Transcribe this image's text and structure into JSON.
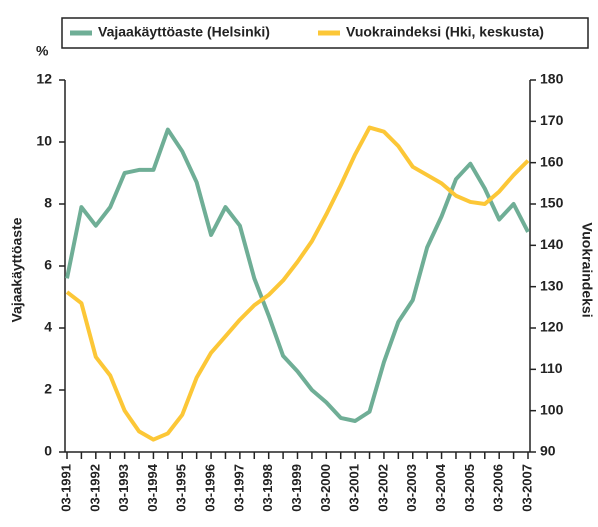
{
  "chart_data": {
    "type": "line",
    "y_label_unit": "%",
    "ylabel": "Vajaakäyttöaste",
    "y2label": "Vuokraindeksi",
    "categories": [
      "03-1991",
      null,
      "03-1992",
      null,
      "03-1993",
      null,
      "03-1994",
      null,
      "03-1995",
      null,
      "03-1996",
      null,
      "03-1997",
      null,
      "03-1998",
      null,
      "03-1999",
      null,
      "03-2000",
      null,
      "03-2001",
      null,
      "03-2002",
      null,
      "03-2003",
      null,
      "03-2004",
      null,
      "03-2005",
      null,
      "03-2006",
      null,
      "03-2007"
    ],
    "series": [
      {
        "name": "Vajaakäyttöaste (Helsinki)",
        "color": "#6fae96",
        "axis": "y",
        "values": [
          5.6,
          7.9,
          7.3,
          7.9,
          9.0,
          9.1,
          9.1,
          10.4,
          9.7,
          8.7,
          7.0,
          7.9,
          7.3,
          5.6,
          4.4,
          3.1,
          2.6,
          2.0,
          1.6,
          1.1,
          1.0,
          1.3,
          2.9,
          4.2,
          4.9,
          6.6,
          7.6,
          8.8,
          9.3,
          8.5,
          7.5,
          8.0,
          7.1
        ]
      },
      {
        "name": "Vuokraindeksi (Hki, keskusta)",
        "color": "#fcc737",
        "axis": "y2",
        "values": [
          128.7,
          126,
          113,
          108.5,
          100,
          95,
          93,
          94.5,
          99,
          108,
          114,
          118,
          122,
          125.5,
          128,
          131.5,
          136,
          141,
          147.5,
          154.5,
          162,
          168.5,
          167.5,
          164,
          159,
          157,
          155,
          152,
          150.5,
          150,
          153,
          157,
          160.5
        ]
      }
    ],
    "ylim": [
      0,
      12
    ],
    "yticks": [
      0,
      2,
      4,
      6,
      8,
      10,
      12
    ],
    "y2lim": [
      90,
      180
    ],
    "y2ticks": [
      90,
      100,
      110,
      120,
      130,
      140,
      150,
      160,
      170,
      180
    ],
    "legend": "top"
  }
}
